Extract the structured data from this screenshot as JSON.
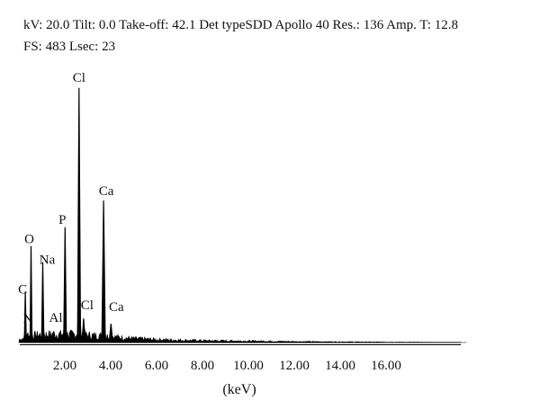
{
  "header": {
    "line1": "kV: 20.0  Tilt: 0.0  Take-off: 42.1  Det typeSDD Apollo 40  Res.: 136  Amp. T: 12.8",
    "line2": "FS: 483   Lsec: 23"
  },
  "chart_data": {
    "type": "line",
    "title": "",
    "xlabel": "(keV)",
    "ylabel": "",
    "xlim": [
      0,
      19.5
    ],
    "ylim": [
      0,
      483
    ],
    "x_ticks": [
      "2.00",
      "4.00",
      "6.00",
      "8.00",
      "10.00",
      "12.00",
      "14.00",
      "16.00"
    ],
    "grid": false,
    "colors": {
      "trace": "#000000"
    },
    "peaks": [
      {
        "label": "C",
        "energy": 0.28,
        "counts": 95
      },
      {
        "label": "N",
        "energy": 0.39,
        "counts": 18
      },
      {
        "label": "O",
        "energy": 0.53,
        "counts": 180
      },
      {
        "label": "Na",
        "energy": 1.04,
        "counts": 150
      },
      {
        "label": "Al",
        "energy": 1.49,
        "counts": 15
      },
      {
        "label": "P",
        "energy": 2.01,
        "counts": 215
      },
      {
        "label": "Cl",
        "energy": 2.62,
        "counts": 475
      },
      {
        "label": "Cl",
        "energy": 2.82,
        "counts": 45
      },
      {
        "label": "Ca",
        "energy": 3.69,
        "counts": 265
      },
      {
        "label": "Ca",
        "energy": 4.01,
        "counts": 35
      }
    ],
    "background": [
      {
        "energy": 0.0,
        "counts": 6
      },
      {
        "energy": 0.5,
        "counts": 14
      },
      {
        "energy": 1.0,
        "counts": 16
      },
      {
        "energy": 2.0,
        "counts": 17
      },
      {
        "energy": 3.0,
        "counts": 15
      },
      {
        "energy": 4.0,
        "counts": 12
      },
      {
        "energy": 5.0,
        "counts": 8
      },
      {
        "energy": 6.0,
        "counts": 6
      },
      {
        "energy": 8.0,
        "counts": 4
      },
      {
        "energy": 10.0,
        "counts": 3
      },
      {
        "energy": 12.0,
        "counts": 2
      },
      {
        "energy": 15.0,
        "counts": 1
      },
      {
        "energy": 19.5,
        "counts": 0
      }
    ]
  }
}
